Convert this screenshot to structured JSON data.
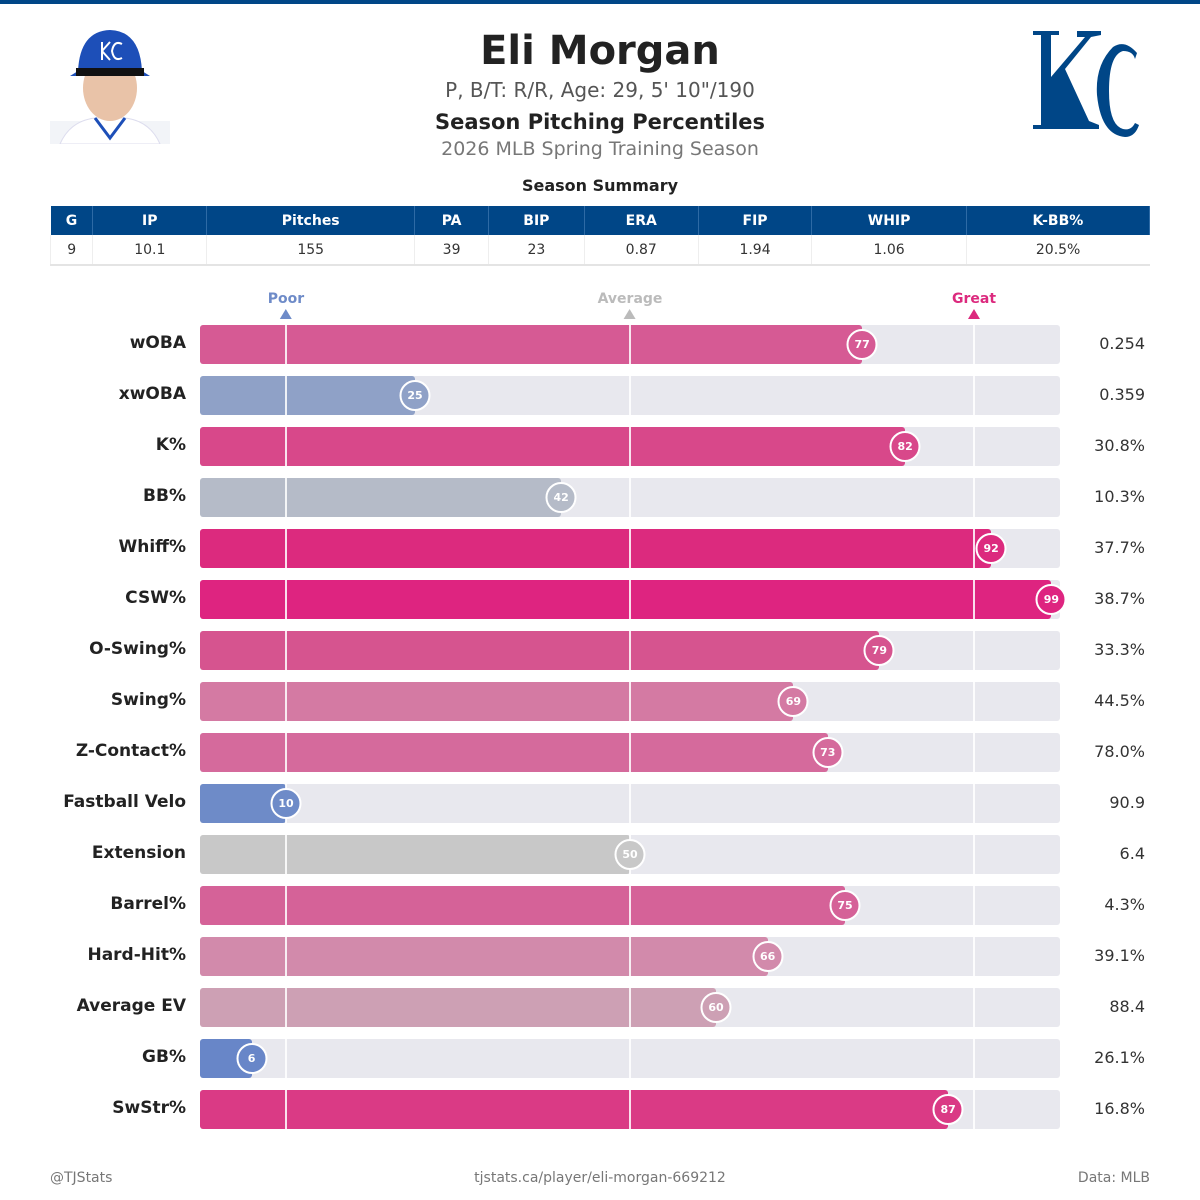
{
  "header": {
    "name": "Eli Morgan",
    "bio": "P, B/T: R/R, Age: 29, 5' 10\"/190",
    "title": "Season Pitching Percentiles",
    "season": "2026 MLB Spring Training Season",
    "logo_text": "KC",
    "brand_color": "#004687"
  },
  "summary": {
    "title": "Season Summary",
    "headers": [
      "G",
      "IP",
      "Pitches",
      "PA",
      "BIP",
      "ERA",
      "FIP",
      "WHIP",
      "K-BB%"
    ],
    "values": [
      "9",
      "10.1",
      "155",
      "39",
      "23",
      "0.87",
      "1.94",
      "1.06",
      "20.5%"
    ]
  },
  "chart_data": {
    "type": "bar",
    "orientation": "horizontal",
    "xlim": [
      0,
      100
    ],
    "reference_markers": [
      {
        "label": "Poor",
        "value": 10,
        "color": "#6e8bc8"
      },
      {
        "label": "Average",
        "value": 50,
        "color": "#bbbbbb"
      },
      {
        "label": "Great",
        "value": 90,
        "color": "#dc2a7e"
      }
    ],
    "rows": [
      {
        "metric": "wOBA",
        "percentile": 77,
        "value": "0.254",
        "color": "#d65a94"
      },
      {
        "metric": "xwOBA",
        "percentile": 25,
        "value": "0.359",
        "color": "#8fa1c7"
      },
      {
        "metric": "K%",
        "percentile": 82,
        "value": "30.8%",
        "color": "#d8488a"
      },
      {
        "metric": "BB%",
        "percentile": 42,
        "value": "10.3%",
        "color": "#b5bbc8"
      },
      {
        "metric": "Whiff%",
        "percentile": 92,
        "value": "37.7%",
        "color": "#dc2a7e"
      },
      {
        "metric": "CSW%",
        "percentile": 99,
        "value": "38.7%",
        "color": "#de2480"
      },
      {
        "metric": "O-Swing%",
        "percentile": 79,
        "value": "33.3%",
        "color": "#d6548f"
      },
      {
        "metric": "Swing%",
        "percentile": 69,
        "value": "44.5%",
        "color": "#d47aa3"
      },
      {
        "metric": "Z-Contact%",
        "percentile": 73,
        "value": "78.0%",
        "color": "#d56a9c"
      },
      {
        "metric": "Fastball Velo",
        "percentile": 10,
        "value": "90.9",
        "color": "#6e8bc8"
      },
      {
        "metric": "Extension",
        "percentile": 50,
        "value": "6.4",
        "color": "#c8c8c8"
      },
      {
        "metric": "Barrel%",
        "percentile": 75,
        "value": "4.3%",
        "color": "#d56298"
      },
      {
        "metric": "Hard-Hit%",
        "percentile": 66,
        "value": "39.1%",
        "color": "#d28aab"
      },
      {
        "metric": "Average EV",
        "percentile": 60,
        "value": "88.4",
        "color": "#cda0b4"
      },
      {
        "metric": "GB%",
        "percentile": 6,
        "value": "26.1%",
        "color": "#6886c8"
      },
      {
        "metric": "SwStr%",
        "percentile": 87,
        "value": "16.8%",
        "color": "#da3a85"
      }
    ]
  },
  "footer": {
    "left": "@TJStats",
    "center": "tjstats.ca/player/eli-morgan-669212",
    "right": "Data: MLB"
  }
}
